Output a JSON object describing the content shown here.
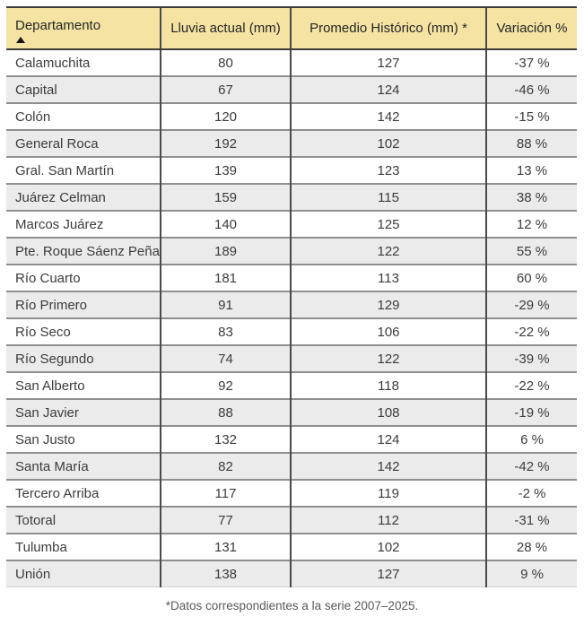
{
  "table": {
    "columns": [
      {
        "label": "Departamento",
        "sorted": "ascending"
      },
      {
        "label": "Lluvia actual (mm)"
      },
      {
        "label": "Promedio Histórico (mm) *"
      },
      {
        "label": "Variación %"
      }
    ],
    "rows": [
      [
        "Calamuchita",
        "80",
        "127",
        "-37 %"
      ],
      [
        "Capital",
        "67",
        "124",
        "-46 %"
      ],
      [
        "Colón",
        "120",
        "142",
        "-15 %"
      ],
      [
        "General Roca",
        "192",
        "102",
        "88 %"
      ],
      [
        "Gral. San Martín",
        "139",
        "123",
        "13 %"
      ],
      [
        "Juárez Celman",
        "159",
        "115",
        "38 %"
      ],
      [
        "Marcos Juárez",
        "140",
        "125",
        "12 %"
      ],
      [
        "Pte. Roque Sáenz Peña",
        "189",
        "122",
        "55 %"
      ],
      [
        "Río Cuarto",
        "181",
        "113",
        "60 %"
      ],
      [
        "Río Primero",
        "91",
        "129",
        "-29 %"
      ],
      [
        "Río Seco",
        "83",
        "106",
        "-22 %"
      ],
      [
        "Río Segundo",
        "74",
        "122",
        "-39 %"
      ],
      [
        "San Alberto",
        "92",
        "118",
        "-22 %"
      ],
      [
        "San Javier",
        "88",
        "108",
        "-19 %"
      ],
      [
        "San Justo",
        "132",
        "124",
        "6 %"
      ],
      [
        "Santa María",
        "82",
        "142",
        "-42 %"
      ],
      [
        "Tercero Arriba",
        "117",
        "119",
        "-2 %"
      ],
      [
        "Totoral",
        "77",
        "112",
        "-31 %"
      ],
      [
        "Tulumba",
        "131",
        "102",
        "28 %"
      ],
      [
        "Unión",
        "138",
        "127",
        "9 %"
      ]
    ]
  },
  "footnote": "*Datos correspondientes a la serie 2007–2025.",
  "colors": {
    "header_bg": "#f4e3a2",
    "alt_row_bg": "#ebebeb",
    "grid_vertical": "#4a4a4a",
    "grid_horizontal": "#8f8f8f",
    "header_border": "#3c3c3c",
    "text": "#3c3c3c",
    "footnote_text": "#595959"
  }
}
